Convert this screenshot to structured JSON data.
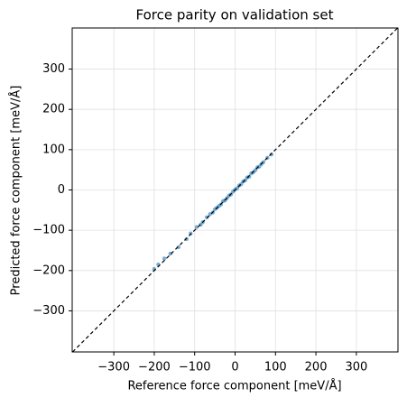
{
  "chart_data": {
    "type": "scatter",
    "title": "Force parity on validation set",
    "x_label": "Reference force component  [meV/Å]",
    "y_label": "Predicted force component  [meV/Å]",
    "xlim": [
      -403,
      403
    ],
    "ylim": [
      -402,
      402
    ],
    "xticks": [
      {
        "value": -300,
        "label": "−300"
      },
      {
        "value": -200,
        "label": "−200"
      },
      {
        "value": -100,
        "label": "−100"
      },
      0,
      100,
      200,
      300
    ],
    "yticks": [
      {
        "value": -300,
        "label": "−300"
      },
      {
        "value": -200,
        "label": "−200"
      },
      {
        "value": -100,
        "label": "−100"
      },
      0,
      100,
      200,
      300
    ],
    "grid": true,
    "color": "#1f77b4",
    "x": [
      -200,
      -190,
      -175,
      -160,
      -140,
      -120,
      -110,
      -95,
      -85,
      -80,
      -70,
      -62,
      -55,
      -50,
      -45,
      -40,
      -35,
      -30,
      -25,
      -20,
      -15,
      -10,
      -5,
      0,
      5,
      10,
      15,
      20,
      25,
      30,
      35,
      40,
      45,
      50,
      55,
      60,
      65,
      70,
      80,
      90
    ],
    "y": [
      -196,
      -185,
      -170,
      -158,
      -142,
      -122,
      -108,
      -92,
      -86,
      -80,
      -68,
      -60,
      -56,
      -48,
      -44,
      -40,
      -36,
      -28,
      -26,
      -20,
      -14,
      -11,
      -4,
      1,
      4,
      11,
      14,
      21,
      24,
      31,
      33,
      41,
      44,
      49,
      56,
      58,
      64,
      69,
      80,
      88
    ]
  }
}
